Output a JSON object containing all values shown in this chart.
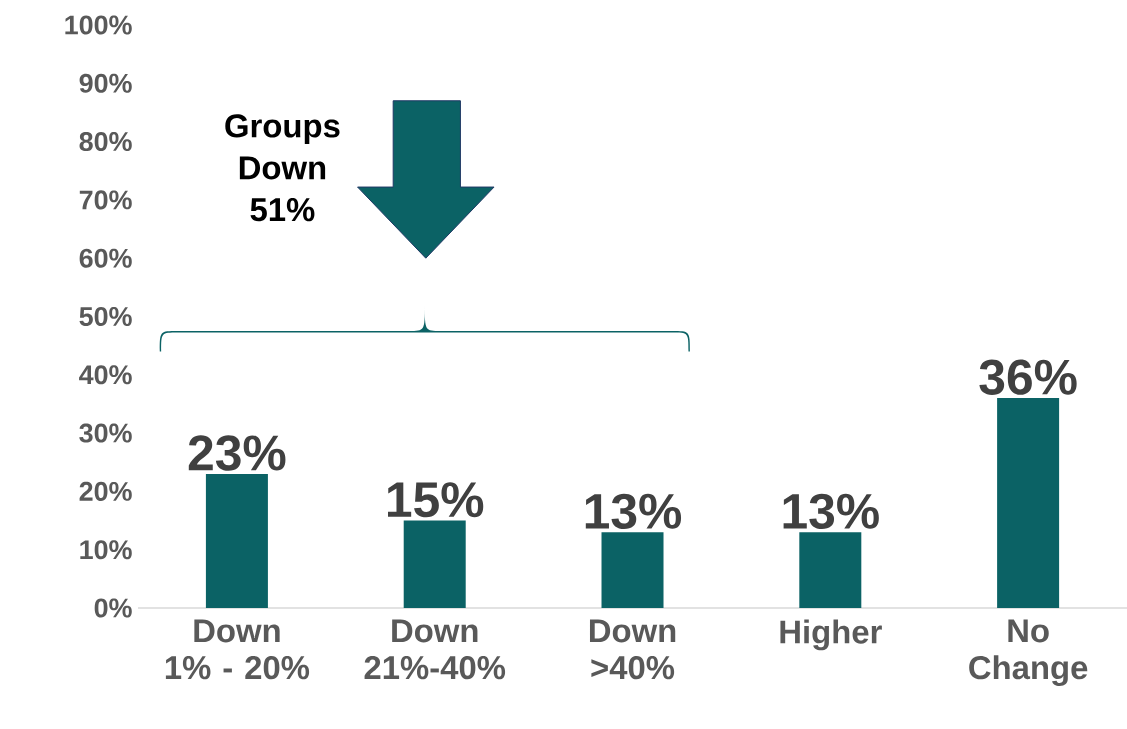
{
  "chart_data": {
    "type": "bar",
    "categories": [
      "Down 1% - 20%",
      "Down 21%-40%",
      "Down >40%",
      "Higher",
      "No Change"
    ],
    "values": [
      23,
      15,
      13,
      13,
      36
    ],
    "value_labels": [
      "23%",
      "15%",
      "13%",
      "13%",
      "36%"
    ],
    "color": "#0b6265",
    "ylim": [
      0,
      100
    ],
    "yticks": [
      {
        "value": 0,
        "label": "0%"
      },
      {
        "value": 10,
        "label": "10%"
      },
      {
        "value": 20,
        "label": "20%"
      },
      {
        "value": 30,
        "label": "30%"
      },
      {
        "value": 40,
        "label": "40%"
      },
      {
        "value": 50,
        "label": "50%"
      },
      {
        "value": 60,
        "label": "60%"
      },
      {
        "value": 70,
        "label": "70%"
      },
      {
        "value": 80,
        "label": "80%"
      },
      {
        "value": 90,
        "label": "90%"
      },
      {
        "value": 100,
        "label": "100%"
      }
    ],
    "grid": false,
    "annotations": [
      "Groups Down 51%"
    ]
  }
}
